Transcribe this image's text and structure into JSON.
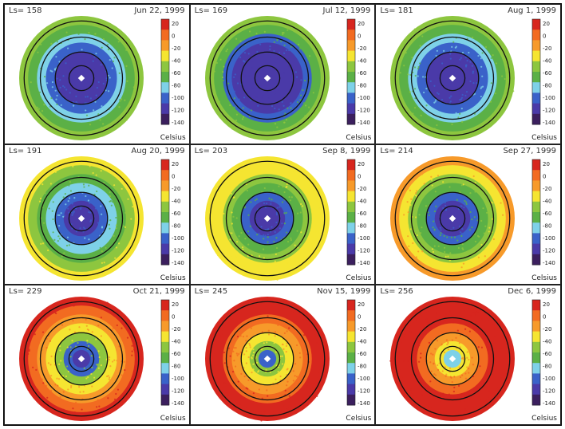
{
  "figure": {
    "colorbar": {
      "ticks": [
        "20",
        "0",
        "-20",
        "-40",
        "-60",
        "-80",
        "-100",
        "-120",
        "-140"
      ],
      "unit": "Celsius",
      "colors": [
        "#d7261e",
        "#f26b21",
        "#f79a2a",
        "#f5e531",
        "#8dc63f",
        "#5bb046",
        "#7ed1e8",
        "#3a62c9",
        "#4a3aa8",
        "#3b1f5e"
      ]
    },
    "panels": [
      {
        "ls": "Ls= 158",
        "date": "Jun 22, 1999"
      },
      {
        "ls": "Ls= 169",
        "date": "Jul 12, 1999"
      },
      {
        "ls": "Ls= 181",
        "date": "Aug 1, 1999"
      },
      {
        "ls": "Ls= 191",
        "date": "Aug 20, 1999"
      },
      {
        "ls": "Ls= 203",
        "date": "Sep 8, 1999"
      },
      {
        "ls": "Ls= 214",
        "date": "Sep 27, 1999"
      },
      {
        "ls": "Ls= 229",
        "date": "Oct 21, 1999"
      },
      {
        "ls": "Ls= 245",
        "date": "Nov 15, 1999"
      },
      {
        "ls": "Ls= 256",
        "date": "Dec 6, 1999"
      }
    ]
  }
}
